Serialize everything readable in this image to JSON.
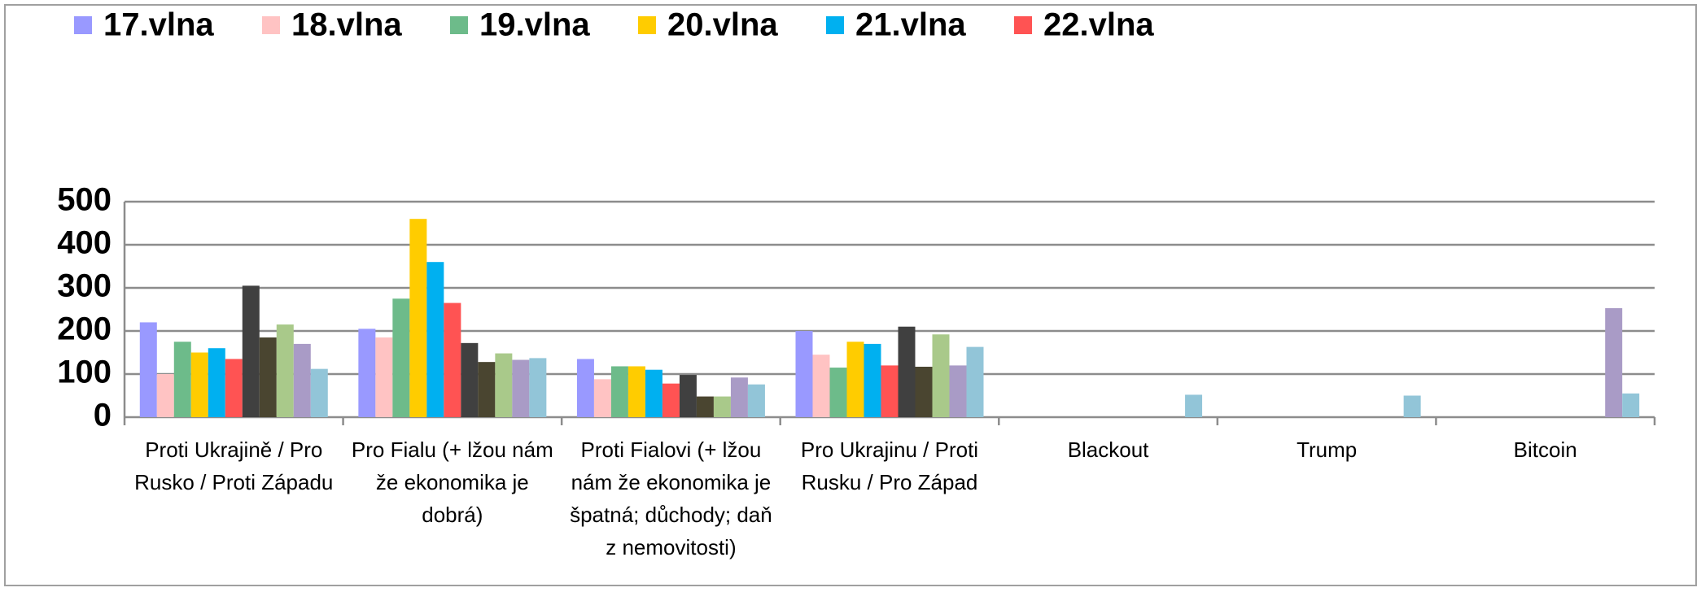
{
  "chart_data": {
    "type": "bar",
    "categories": [
      "Proti Ukrajině / Pro Rusko / Proti Západu",
      "Pro Fialu (+ lžou nám že ekonomika je dobrá)",
      "Proti Fialovi (+ lžou nám že ekonomika je špatná; důchody; daň z nemovitosti)",
      "Pro Ukrajinu / Proti Rusku / Pro Západ",
      "Blackout",
      "Trump",
      "Bitcoin"
    ],
    "series": [
      {
        "name": "17.vlna",
        "color": "#9999ff",
        "values": [
          220,
          205,
          135,
          200,
          null,
          null,
          null
        ]
      },
      {
        "name": "18.vlna",
        "color": "#ffc3c3",
        "values": [
          100,
          185,
          88,
          145,
          null,
          null,
          null
        ]
      },
      {
        "name": "19.vlna",
        "color": "#6dbb8a",
        "values": [
          175,
          275,
          118,
          115,
          null,
          null,
          null
        ]
      },
      {
        "name": "20.vlna",
        "color": "#ffcc00",
        "values": [
          150,
          460,
          118,
          175,
          null,
          null,
          null
        ]
      },
      {
        "name": "21.vlna",
        "color": "#00b0f0",
        "values": [
          160,
          360,
          110,
          170,
          null,
          null,
          null
        ]
      },
      {
        "name": "22.vlna",
        "color": "#ff5353",
        "values": [
          135,
          265,
          78,
          120,
          null,
          null,
          null
        ]
      },
      {
        "color": "#404040",
        "values": [
          305,
          172,
          98,
          210,
          null,
          null,
          null
        ]
      },
      {
        "color": "#4a4530",
        "values": [
          185,
          128,
          48,
          117,
          null,
          null,
          null
        ]
      },
      {
        "color": "#a9c98a",
        "values": [
          215,
          148,
          48,
          192,
          null,
          null,
          null
        ]
      },
      {
        "color": "#a99bc6",
        "values": [
          170,
          133,
          92,
          120,
          null,
          null,
          253
        ]
      },
      {
        "color": "#92c5d8",
        "values": [
          112,
          137,
          76,
          163,
          52,
          50,
          55
        ]
      }
    ],
    "ylim": [
      0,
      500
    ],
    "yticks": [
      0,
      100,
      200,
      300,
      400,
      500
    ],
    "grid": true
  }
}
